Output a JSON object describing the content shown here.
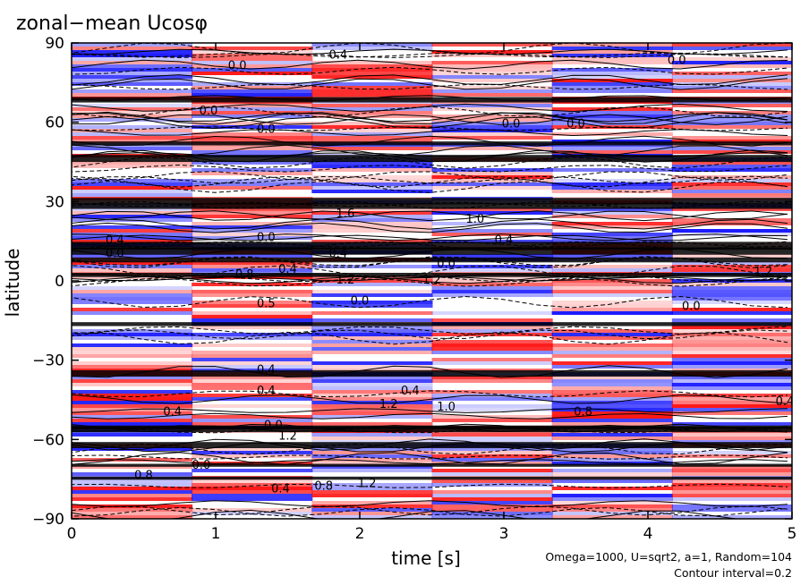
{
  "chart_data": {
    "type": "heatmap",
    "title": "zonal−mean Ucosφ",
    "xlabel": "time [s]",
    "ylabel": "latitude",
    "xlim": [
      0,
      5
    ],
    "ylim": [
      -90,
      90
    ],
    "xticks": [
      0,
      1,
      2,
      3,
      4,
      5
    ],
    "yticks": [
      90,
      60,
      30,
      0,
      -30,
      -60,
      -90
    ],
    "ytick_labels": [
      "90",
      "60",
      "30",
      "0",
      "−30",
      "−60",
      "−90"
    ],
    "colors": {
      "positive": "#ff0000",
      "negative": "#0000ff",
      "contour": "#000000"
    },
    "contour_labels": [
      {
        "t": 1.85,
        "lat": 84,
        "text": "0.4"
      },
      {
        "t": 1.15,
        "lat": 80,
        "text": "0.0"
      },
      {
        "t": 4.2,
        "lat": 82,
        "text": "0.0"
      },
      {
        "t": 0.95,
        "lat": 63,
        "text": "0.0"
      },
      {
        "t": 1.35,
        "lat": 56,
        "text": "0.0"
      },
      {
        "t": 3.05,
        "lat": 58,
        "text": "0.0"
      },
      {
        "t": 3.5,
        "lat": 58,
        "text": "0.0"
      },
      {
        "t": 1.9,
        "lat": 24,
        "text": "1.6"
      },
      {
        "t": 2.8,
        "lat": 22,
        "text": "1.0"
      },
      {
        "t": 0.3,
        "lat": 14,
        "text": "0.4"
      },
      {
        "t": 1.35,
        "lat": 15,
        "text": "0.0"
      },
      {
        "t": 3.0,
        "lat": 14,
        "text": "0.4"
      },
      {
        "t": 0.3,
        "lat": 9,
        "text": "0.0"
      },
      {
        "t": 1.85,
        "lat": 9,
        "text": "0.4"
      },
      {
        "t": 1.5,
        "lat": 3,
        "text": "0.4"
      },
      {
        "t": 2.6,
        "lat": 5,
        "text": "0.0"
      },
      {
        "t": 4.8,
        "lat": 2,
        "text": "1.2"
      },
      {
        "t": 1.2,
        "lat": 1,
        "text": "0.8"
      },
      {
        "t": 1.9,
        "lat": -1,
        "text": "1.2"
      },
      {
        "t": 2.5,
        "lat": -1,
        "text": "1.2"
      },
      {
        "t": 1.35,
        "lat": -10,
        "text": "0.5"
      },
      {
        "t": 2.0,
        "lat": -9,
        "text": "0.0"
      },
      {
        "t": 4.3,
        "lat": -11,
        "text": "0.0"
      },
      {
        "t": 1.35,
        "lat": -35,
        "text": "0.4"
      },
      {
        "t": 1.35,
        "lat": -43,
        "text": "0.4"
      },
      {
        "t": 2.35,
        "lat": -43,
        "text": "0.4"
      },
      {
        "t": 2.2,
        "lat": -48,
        "text": "1.2"
      },
      {
        "t": 2.6,
        "lat": -49,
        "text": "1.0"
      },
      {
        "t": 3.55,
        "lat": -51,
        "text": "0.8"
      },
      {
        "t": 4.95,
        "lat": -47,
        "text": "0.4"
      },
      {
        "t": 0.7,
        "lat": -51,
        "text": "0.4"
      },
      {
        "t": 1.4,
        "lat": -56,
        "text": "0.0"
      },
      {
        "t": 1.5,
        "lat": -60,
        "text": "1.2"
      },
      {
        "t": 0.5,
        "lat": -75,
        "text": "0.8"
      },
      {
        "t": 0.9,
        "lat": -71,
        "text": "0.0"
      },
      {
        "t": 1.45,
        "lat": -80,
        "text": "0.4"
      },
      {
        "t": 1.75,
        "lat": -79,
        "text": "0.8"
      },
      {
        "t": 2.05,
        "lat": -78,
        "text": "1.2"
      }
    ]
  },
  "annotations": {
    "params": "Omega=1000, U=sqrt2, a=1, Random=104",
    "contour_interval": "Contour interval=0.2"
  }
}
